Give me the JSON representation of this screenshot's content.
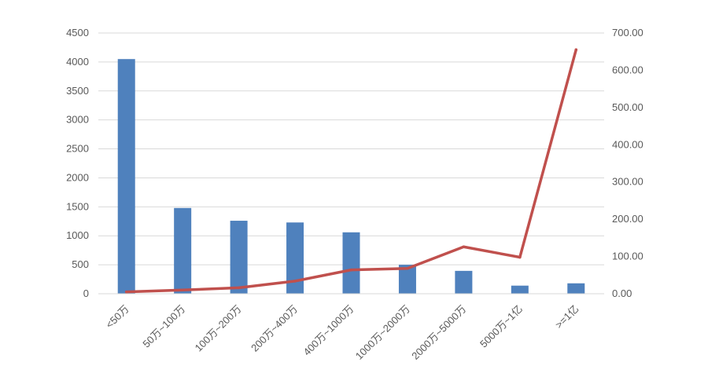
{
  "chart_data": {
    "type": "bar",
    "categories": [
      "<50万",
      "50万~100万",
      "100万~200万",
      "200万~400万",
      "400万~1000万",
      "1000万~2000万",
      "2000万~5000万",
      "5000万~1亿",
      ">=1亿"
    ],
    "series": [
      {
        "type": "bar",
        "axis": "left",
        "color": "#4F81BD",
        "values": [
          4050,
          1480,
          1260,
          1230,
          1060,
          500,
          395,
          140,
          180
        ]
      },
      {
        "type": "line",
        "axis": "right",
        "color": "#C0504D",
        "values": [
          5,
          10,
          16,
          34,
          64,
          68,
          126,
          98,
          655
        ]
      }
    ],
    "y_left": {
      "range": [
        0,
        4500
      ],
      "ticks": [
        "0",
        "500",
        "1000",
        "1500",
        "2000",
        "2500",
        "3000",
        "3500",
        "4000",
        "4500"
      ]
    },
    "y_right": {
      "range": [
        0,
        700
      ],
      "ticks": [
        "0.00",
        "100.00",
        "200.00",
        "300.00",
        "400.00",
        "500.00",
        "600.00",
        "700.00"
      ]
    },
    "grid": true,
    "legend": "none",
    "title": "",
    "xlabel": "",
    "ylabel": ""
  }
}
